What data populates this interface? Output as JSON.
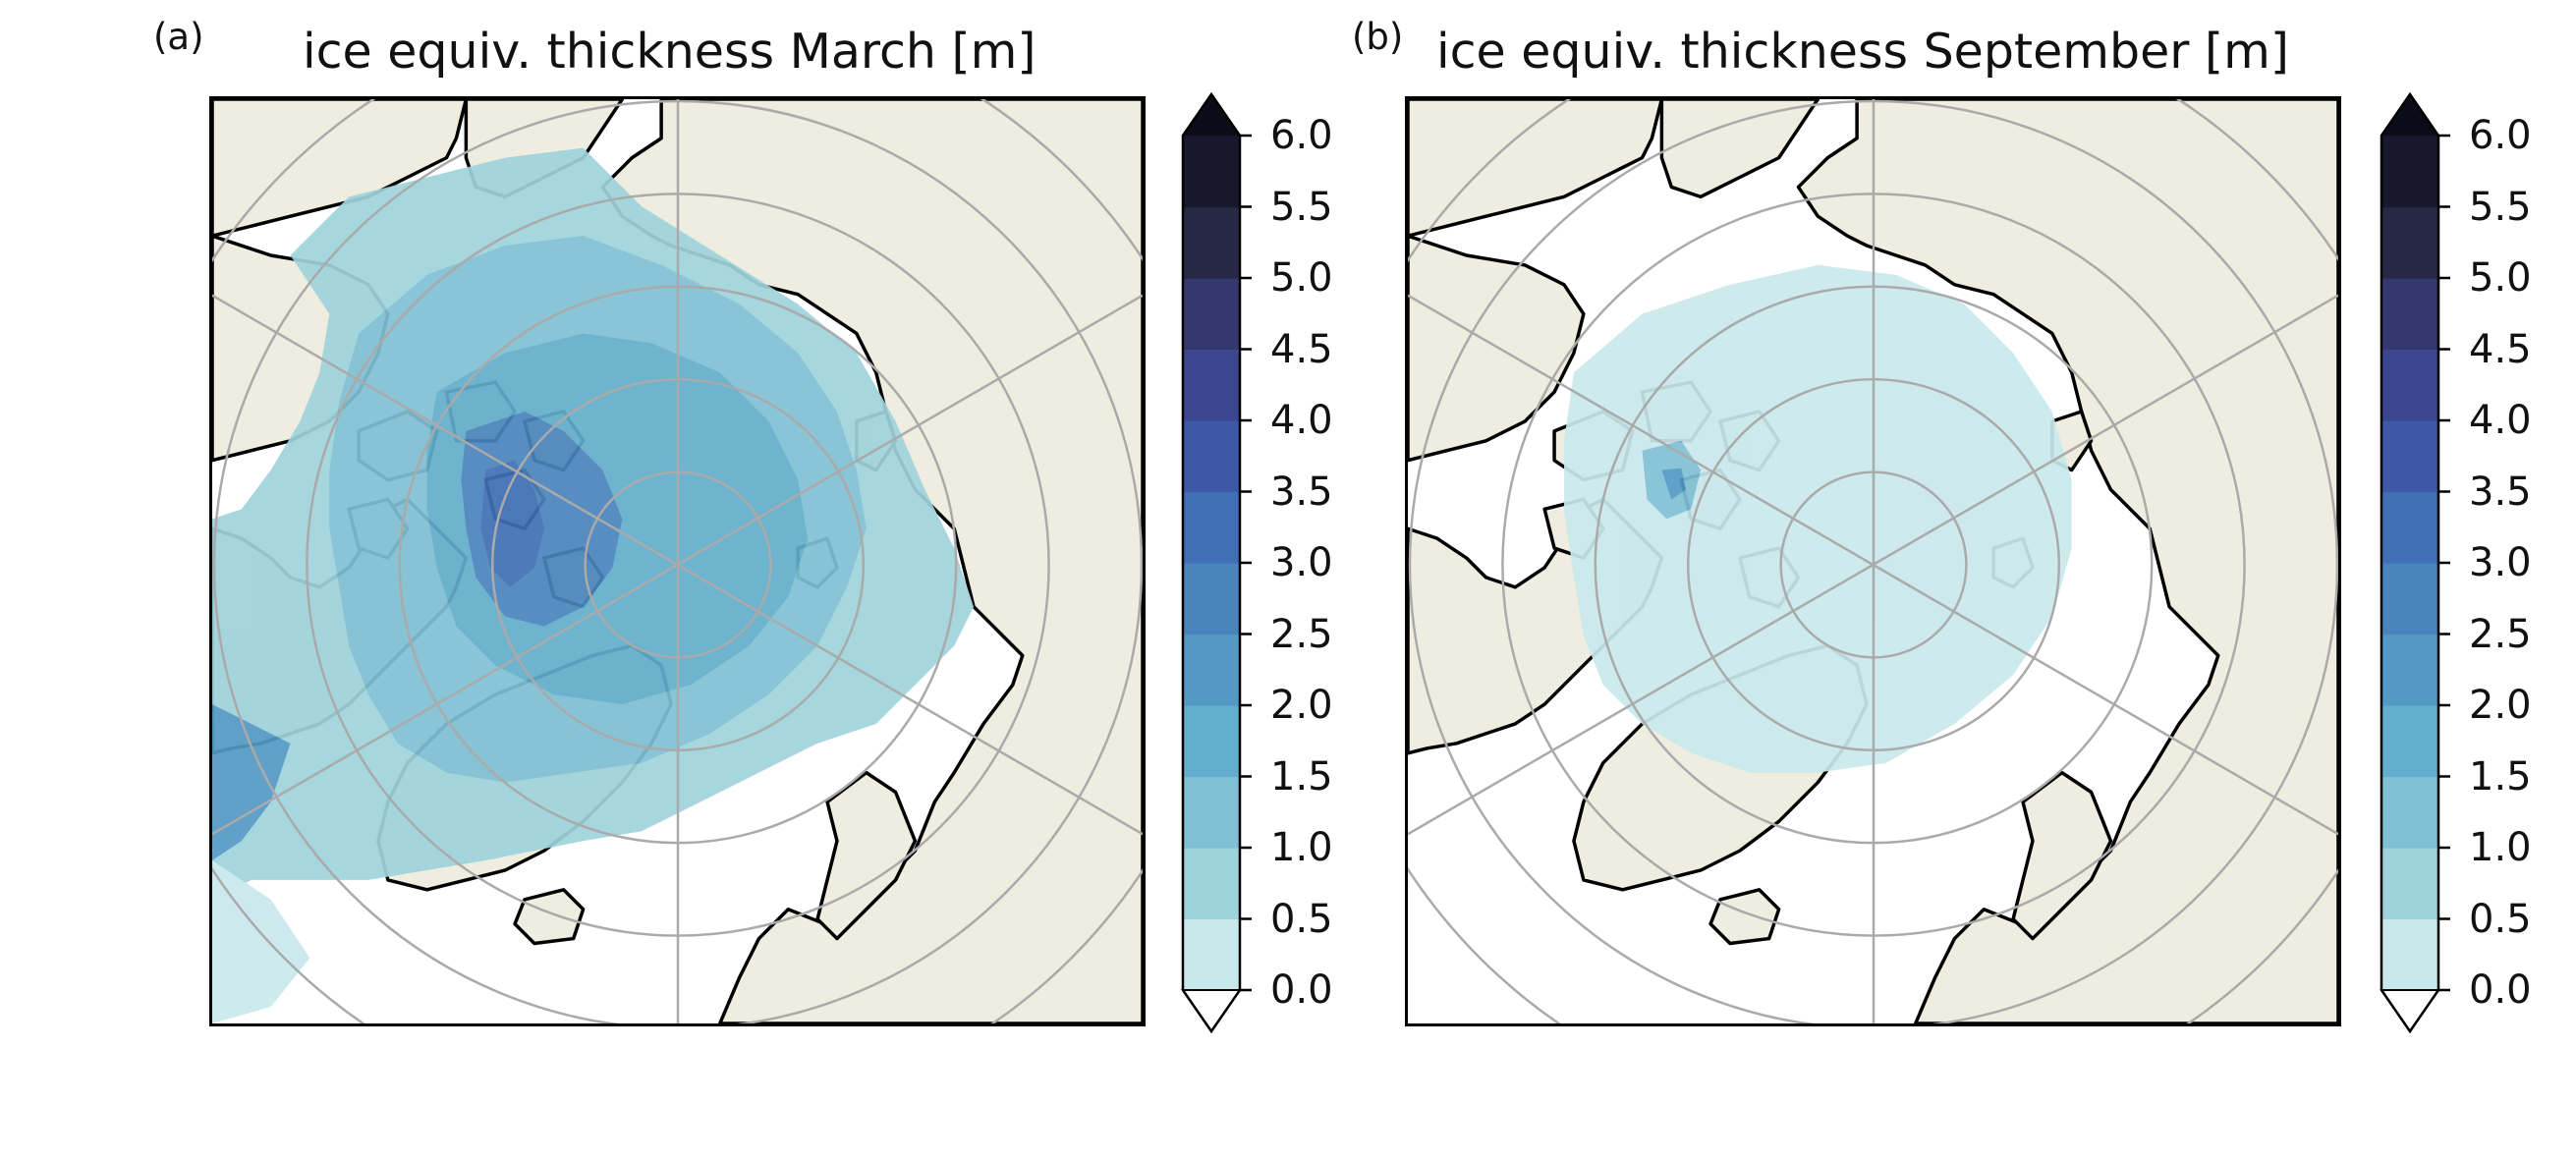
{
  "figure": {
    "panels": [
      {
        "label": "(a)",
        "title": "ice equiv. thickness March [m]",
        "month": "March"
      },
      {
        "label": "(b)",
        "title": "ice equiv. thickness September [m]",
        "month": "September"
      }
    ],
    "colors": {
      "land": "#efeddf",
      "ocean": "#ffffff",
      "coastline": "#000000",
      "graticule": "#aaaaaa"
    }
  },
  "colorbar": {
    "ticks": [
      "0.0",
      "0.5",
      "1.0",
      "1.5",
      "2.0",
      "2.5",
      "3.0",
      "3.5",
      "4.0",
      "4.5",
      "5.0",
      "5.5",
      "6.0"
    ],
    "levels": [
      0.0,
      0.5,
      1.0,
      1.5,
      2.0,
      2.5,
      3.0,
      3.5,
      4.0,
      4.5,
      5.0,
      5.5,
      6.0
    ],
    "colors": [
      "#c9e8ec",
      "#9fd3dc",
      "#7fc0d4",
      "#62aecc",
      "#5499c5",
      "#4a84bc",
      "#406fb5",
      "#3c58a6",
      "#3c4590",
      "#34386e",
      "#272746",
      "#17182b"
    ],
    "under_color": "#ffffff",
    "over_color": "#0b0c18",
    "extend": "both",
    "unit": "m"
  }
}
